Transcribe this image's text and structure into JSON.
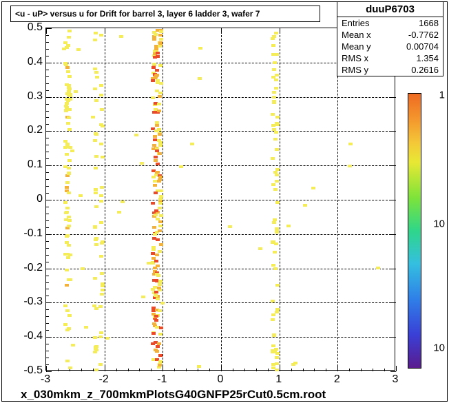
{
  "chart": {
    "type": "heatmap-scatter",
    "title": "<u - uP>      versus   u for Drift for barrel 3, layer 6 ladder 3, wafer 7",
    "footer": "x_030mkm_z_700mkmPlotsG40GNFP25rCut0.5cm.root",
    "background_color": "#ffffff",
    "frame_border_color": "#000000",
    "grid_color": "#000000",
    "grid_style": "dashed",
    "stats": {
      "name": "duuP6703",
      "rows": [
        {
          "label": "Entries",
          "value": "1668"
        },
        {
          "label": "Mean x",
          "value": "-0.7762"
        },
        {
          "label": "Mean y",
          "value": "0.00704"
        },
        {
          "label": "RMS x",
          "value": "1.354"
        },
        {
          "label": "RMS y",
          "value": "0.2616"
        }
      ]
    },
    "x_axis": {
      "lim": [
        -3,
        3
      ],
      "ticks": [
        -3,
        -2,
        -1,
        0,
        1,
        2,
        3
      ],
      "label_fontsize": 16
    },
    "y_axis": {
      "lim": [
        -0.5,
        0.5
      ],
      "ticks": [
        -0.5,
        -0.4,
        -0.3,
        -0.2,
        -0.1,
        0,
        0.1,
        0.2,
        0.3,
        0.4,
        0.5
      ],
      "label_fontsize": 16
    },
    "colorbar": {
      "scale": "log",
      "ticks": [
        "1",
        "10",
        "10"
      ],
      "stops": [
        {
          "c": "#5a1b8e",
          "p": 0.0
        },
        {
          "c": "#3a3fd6",
          "p": 0.12
        },
        {
          "c": "#2f7fe8",
          "p": 0.25
        },
        {
          "c": "#34bfe0",
          "p": 0.38
        },
        {
          "c": "#2fd68a",
          "p": 0.5
        },
        {
          "c": "#7de33a",
          "p": 0.62
        },
        {
          "c": "#e8e834",
          "p": 0.75
        },
        {
          "c": "#f4c838",
          "p": 0.82
        },
        {
          "c": "#f49a2e",
          "p": 0.9
        },
        {
          "c": "#ef6a22",
          "p": 1.0
        }
      ]
    },
    "bin_colors": {
      "low": "#f5ec5a",
      "mid": "#f4b13a",
      "high": "#e84a2a"
    },
    "bands": [
      {
        "x": -2.65,
        "density": 0.7
      },
      {
        "x": -2.6,
        "density": 0.6
      },
      {
        "x": -2.15,
        "density": 0.5
      },
      {
        "x": -2.05,
        "density": 0.4
      },
      {
        "x": -1.15,
        "density": 1.0
      },
      {
        "x": -1.1,
        "density": 1.0
      },
      {
        "x": -1.05,
        "density": 0.9
      },
      {
        "x": 0.9,
        "density": 0.55
      },
      {
        "x": 0.95,
        "density": 0.5
      }
    ],
    "sparse_regions": [
      {
        "xr": [
          -3.0,
          -2.3
        ],
        "d": 0.25
      },
      {
        "xr": [
          -2.3,
          -1.3
        ],
        "d": 0.18
      },
      {
        "xr": [
          -1.3,
          -0.5
        ],
        "d": 0.12
      },
      {
        "xr": [
          -0.5,
          0.7
        ],
        "d": 0.1
      },
      {
        "xr": [
          0.7,
          1.3
        ],
        "d": 0.14
      },
      {
        "xr": [
          1.3,
          3.0
        ],
        "d": 0.06
      }
    ]
  }
}
